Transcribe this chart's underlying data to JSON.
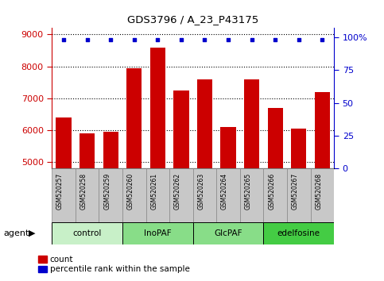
{
  "title": "GDS3796 / A_23_P43175",
  "samples": [
    "GSM520257",
    "GSM520258",
    "GSM520259",
    "GSM520260",
    "GSM520261",
    "GSM520262",
    "GSM520263",
    "GSM520264",
    "GSM520265",
    "GSM520266",
    "GSM520267",
    "GSM520268"
  ],
  "bar_values": [
    6400,
    5900,
    5950,
    7950,
    8600,
    7250,
    7600,
    6100,
    7600,
    6700,
    6050,
    7200
  ],
  "percentile_values": [
    98,
    98,
    98,
    98,
    98,
    98,
    98,
    98,
    98,
    98,
    98,
    98
  ],
  "bar_color": "#cc0000",
  "dot_color": "#0000cc",
  "ylim_left": [
    4800,
    9200
  ],
  "ylim_right": [
    0,
    107
  ],
  "yticks_left": [
    5000,
    6000,
    7000,
    8000,
    9000
  ],
  "yticks_right": [
    0,
    25,
    50,
    75,
    100
  ],
  "groups": [
    {
      "label": "control",
      "start": 0,
      "end": 2,
      "color": "#c8f0c8"
    },
    {
      "label": "InoPAF",
      "start": 3,
      "end": 5,
      "color": "#88dd88"
    },
    {
      "label": "GlcPAF",
      "start": 6,
      "end": 8,
      "color": "#88dd88"
    },
    {
      "label": "edelfosine",
      "start": 9,
      "end": 11,
      "color": "#44cc44"
    }
  ],
  "agent_label": "agent",
  "legend_count_label": "count",
  "legend_pct_label": "percentile rank within the sample",
  "bar_color_red": "#cc0000",
  "dot_color_blue": "#0000cc",
  "sample_box_color": "#c8c8c8",
  "grid_color": "#000000",
  "spine_color": "#000000"
}
